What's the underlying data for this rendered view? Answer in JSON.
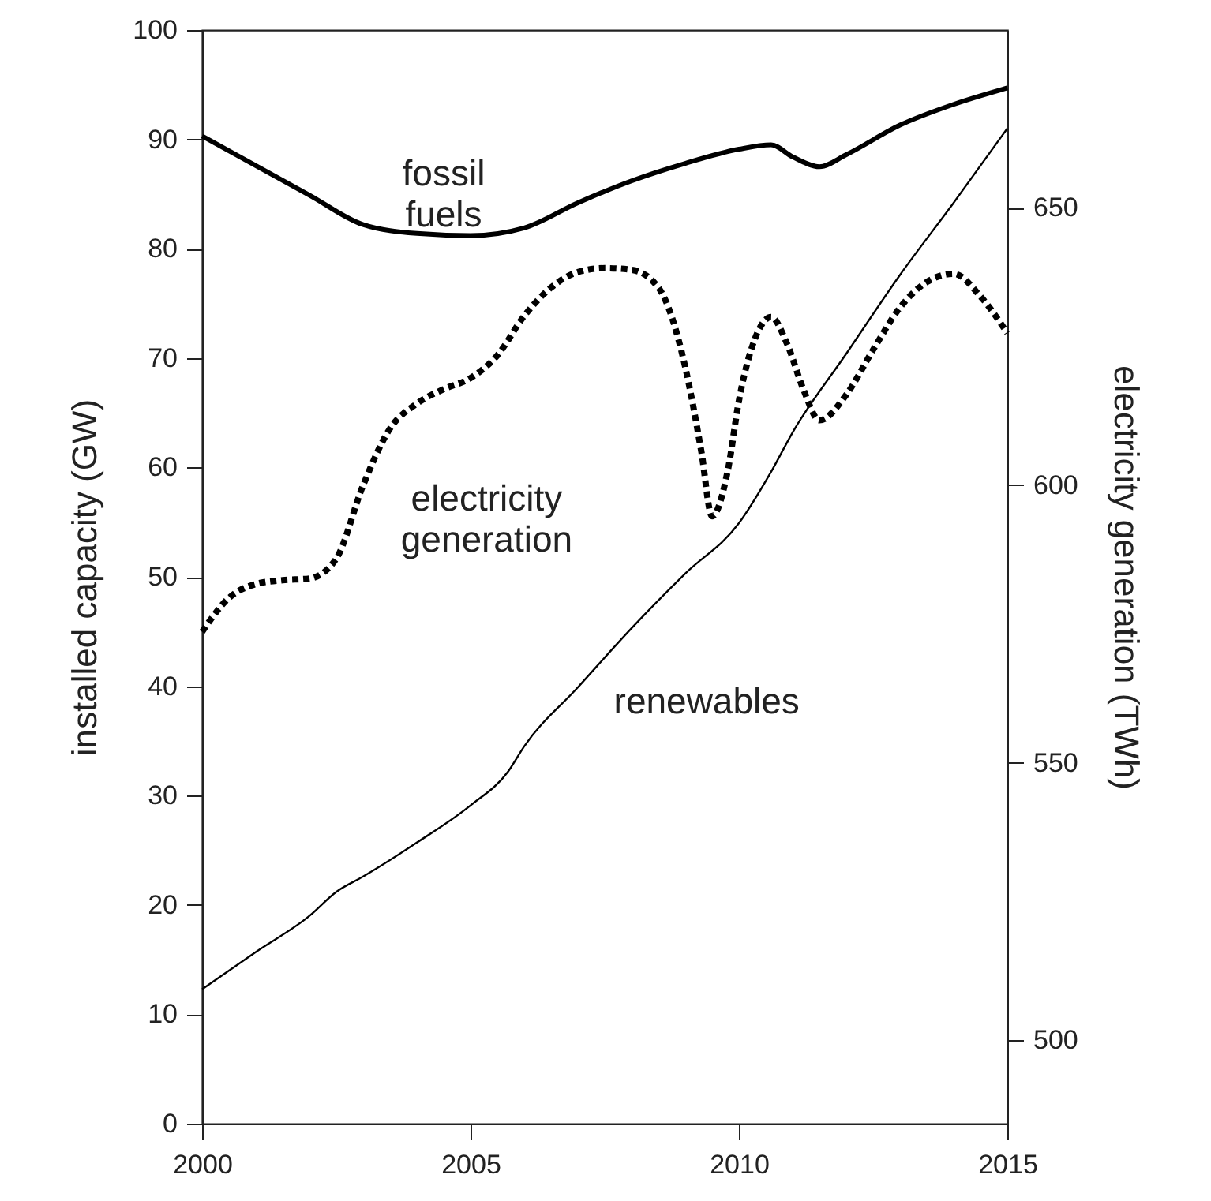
{
  "chart_data": {
    "type": "line",
    "xlabel": null,
    "ylabel": "installed capacity (GW)",
    "y2label": "electricity generation (TWh)",
    "xlim": [
      2000,
      2015
    ],
    "xticks": [
      2000,
      2005,
      2010,
      2015
    ],
    "ylim": [
      0,
      100
    ],
    "yticks": [
      0,
      10,
      20,
      30,
      40,
      50,
      60,
      70,
      80,
      90,
      100
    ],
    "y2lim": [
      485,
      682
    ],
    "y2ticks": [
      500,
      550,
      600,
      650
    ],
    "grid": false,
    "marker": "none",
    "series": [
      {
        "name": "fossil fuels",
        "color": "#000000",
        "line_style": "solid",
        "x": [
          2000,
          2001,
          2002,
          2003,
          2004,
          2005,
          2006,
          2007,
          2008,
          2009,
          2010,
          2010.6,
          2011,
          2011.5,
          2012,
          2013,
          2014,
          2015
        ],
        "values": [
          90.3,
          87.6,
          84.9,
          82.2,
          81.4,
          81.2,
          81.9,
          84.2,
          86.2,
          87.8,
          89.1,
          89.5,
          88.4,
          87.5,
          88.6,
          91.3,
          93.2,
          94.7
        ]
      },
      {
        "name": "renewables",
        "color": "#000000",
        "line_style": "solid",
        "x": [
          2000,
          2001,
          2002,
          2002.5,
          2003,
          2004,
          2005,
          2005.7,
          2006,
          2007,
          2008,
          2009,
          2010,
          2010.6,
          2011,
          2012,
          2013,
          2014,
          2015
        ],
        "values": [
          12.3,
          15.7,
          19.0,
          21.2,
          22.6,
          25.7,
          29.1,
          32.2,
          34.5,
          39.9,
          45.3,
          50.3,
          54.9,
          59.6,
          63.2,
          70.4,
          77.6,
          84.2,
          91.0
        ]
      },
      {
        "name": "electricity generation",
        "color": "#000000",
        "line_style": "dotted",
        "axis": "y2",
        "x": [
          2000,
          2000.5,
          2001,
          2001.5,
          2002,
          2002.5,
          2003,
          2003.5,
          2004,
          2004.5,
          2005,
          2005.5,
          2006,
          2006.5,
          2007,
          2007.5,
          2008,
          2008.5,
          2009,
          2009.3,
          2009.5,
          2009.8,
          2010,
          2010.3,
          2010.6,
          2010.9,
          2011.2,
          2011.5,
          2012,
          2012.5,
          2013,
          2013.5,
          2014,
          2014.5,
          2015
        ],
        "values": [
          573.6,
          579.7,
          582.2,
          582.9,
          583.2,
          586.8,
          600,
          610.2,
          614.7,
          617.3,
          619.3,
          623.4,
          630.5,
          635.6,
          638.4,
          639.1,
          638.8,
          635.6,
          621.3,
          606.1,
          594.4,
          603,
          615.2,
          626.4,
          630.3,
          625.4,
          617.3,
          611.7,
          616.3,
          624.4,
          632,
          636.6,
          638.1,
          634,
          627.4
        ]
      }
    ]
  }
}
